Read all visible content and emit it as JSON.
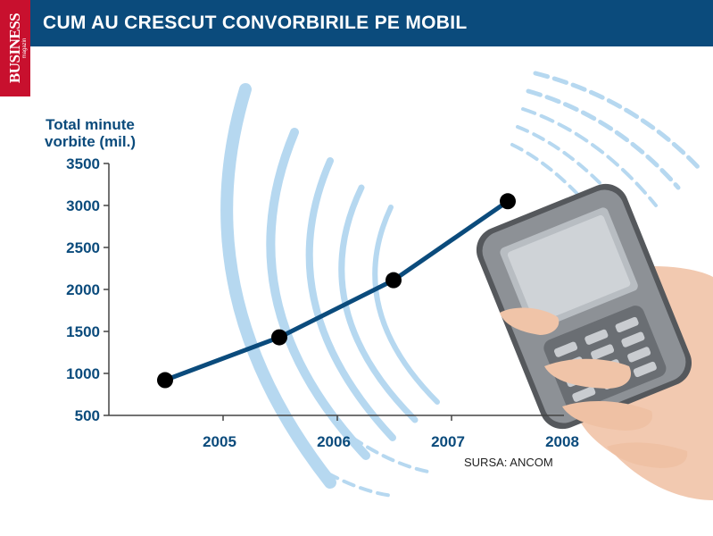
{
  "brand": {
    "logo_text": "BUSINESS",
    "logo_sub": "magazin"
  },
  "header": {
    "title": "CUM AU CRESCUT CONVORBIRILE PE MOBIL"
  },
  "source": "SURSA: ANCOM",
  "colors": {
    "header_bg": "#0b4b7c",
    "line": "#0b4b7c",
    "points": "#000000",
    "logo_bg": "#c8102e",
    "waves": "#b6d8f0"
  },
  "chart_data": {
    "type": "line",
    "title": "CUM AU CRESCUT CONVORBIRILE PE MOBIL",
    "ylabel": "Total minute vorbite (mil.)",
    "xlabel": "",
    "categories": [
      "2005",
      "2006",
      "2007",
      "2008"
    ],
    "values": [
      920,
      1430,
      2110,
      3050
    ],
    "ylim": [
      500,
      3500
    ],
    "yticks": [
      500,
      1000,
      1500,
      2000,
      2500,
      3000,
      3500
    ],
    "grid": false,
    "legend": "none"
  }
}
